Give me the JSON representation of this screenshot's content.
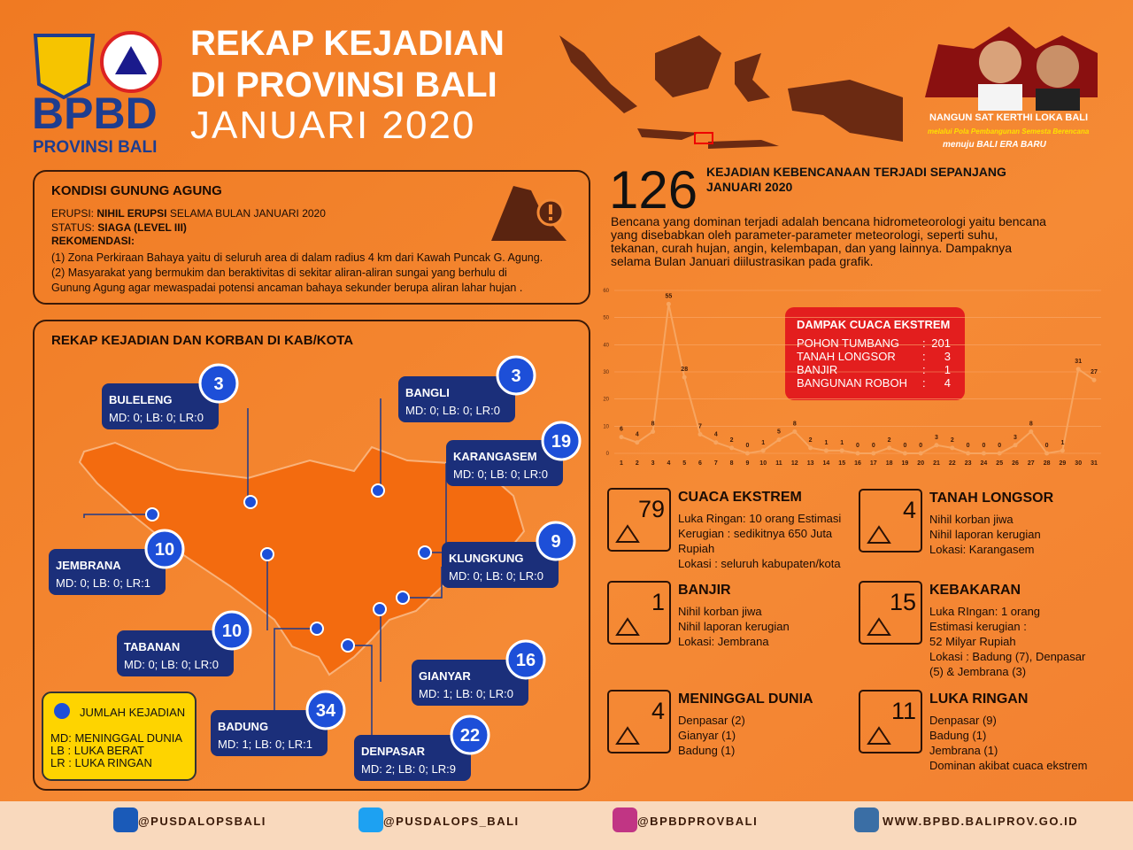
{
  "header": {
    "logo": "BPBD",
    "logo_sub": "PROVINSI BALI",
    "title": [
      "REKAP KEJADIAN",
      "DI PROVINSI BALI",
      "JANUARI 2020"
    ],
    "slogan": [
      "NANGUN SAT KERTHI LOKA BALI",
      "melalui Pola Pembangunan Semesta Berencana",
      "menuju BALI ERA BARU"
    ]
  },
  "gunung": {
    "title": "KONDISI GUNUNG AGUNG",
    "erupsi_label": "ERUPSI:",
    "erupsi_value": "NIHIL ERUPSI",
    "erupsi_note": "SELAMA BULAN JANUARI 2020",
    "status_label": "STATUS:",
    "status_value": "SIAGA (LEVEL III)",
    "rekomendasi": "REKOMENDASI:",
    "lines": [
      "(1)  Zona Perkiraan Bahaya yaitu di seluruh area di dalam radius 4 km dari Kawah Puncak G. Agung.",
      "(2) Masyarakat yang bermukim dan beraktivitas di sekitar aliran-aliran sungai yang berhulu di",
      "Gunung Agung agar mewaspadai potensi ancaman bahaya sekunder berupa aliran lahar hujan ."
    ]
  },
  "map": {
    "title": "REKAP KEJADIAN DAN KORBAN DI KAB/KOTA",
    "regions": [
      {
        "name": "BULELENG",
        "count": 3,
        "stats": "MD: 0; LB: 0; LR:0"
      },
      {
        "name": "BANGLI",
        "count": 3,
        "stats": "MD: 0; LB: 0; LR:0"
      },
      {
        "name": "KARANGASEM",
        "count": 19,
        "stats": "MD: 0; LB: 0; LR:0"
      },
      {
        "name": "JEMBRANA",
        "count": 10,
        "stats": "MD: 0; LB: 0; LR:1"
      },
      {
        "name": "KLUNGKUNG",
        "count": 9,
        "stats": "MD: 0; LB: 0; LR:0"
      },
      {
        "name": "TABANAN",
        "count": 10,
        "stats": "MD: 0; LB: 0; LR:0"
      },
      {
        "name": "GIANYAR",
        "count": 16,
        "stats": "MD: 1; LB: 0; LR:0"
      },
      {
        "name": "BADUNG",
        "count": 34,
        "stats": "MD: 1; LB: 0; LR:1"
      },
      {
        "name": "DENPASAR",
        "count": 22,
        "stats": "MD: 2; LB: 0; LR:9"
      }
    ],
    "legend": [
      "JUMLAH KEJADIAN",
      "MD: MENINGGAL DUNIA",
      "LB  : LUKA BERAT",
      "LR   : LUKA RINGAN"
    ]
  },
  "summary": {
    "total": 126,
    "headline": [
      "KEJADIAN KEBENCANAAN TERJADI SEPANJANG",
      "JANUARI 2020"
    ],
    "paragraph": [
      "Bencana yang dominan terjadi adalah bencana hidrometeorologi yaitu bencana",
      "yang disebabkan oleh parameter-parameter meteorologi, seperti suhu,",
      "tekanan, curah hujan, angin, kelembapan, dan yang lainnya. Dampaknya",
      "selama Bulan Januari diilustrasikan pada grafik."
    ]
  },
  "chart_data": {
    "type": "line",
    "x": [
      1,
      2,
      3,
      4,
      5,
      6,
      7,
      8,
      9,
      10,
      11,
      12,
      13,
      14,
      15,
      16,
      17,
      18,
      19,
      20,
      21,
      22,
      23,
      24,
      25,
      26,
      27,
      28,
      29,
      30,
      31
    ],
    "xlim": [
      1,
      31
    ],
    "series": [
      {
        "color": "#f7a560",
        "values": [
          6,
          4,
          8,
          55,
          28,
          7,
          4,
          2,
          0,
          1,
          5,
          8,
          2,
          1,
          1,
          0,
          0,
          2,
          0,
          0,
          3,
          2,
          0,
          0,
          0,
          3,
          8,
          0,
          1,
          31,
          27
        ]
      }
    ],
    "ylim": [
      0,
      60
    ],
    "yticks": [
      0,
      10,
      20,
      30,
      40,
      50,
      60
    ],
    "grid": true
  },
  "dampak": {
    "title": "DAMPAK CUACA EKSTREM",
    "separator": ":",
    "rows": [
      {
        "label": "POHON TUMBANG",
        "value": 201
      },
      {
        "label": "TANAH LONGSOR",
        "value": 3
      },
      {
        "label": "BANJIR",
        "value": 1
      },
      {
        "label": "BANGUNAN ROBOH",
        "value": 4
      }
    ]
  },
  "cards": [
    {
      "number": 79,
      "title": "CUACA EKSTREM",
      "lines": [
        "Luka Ringan: 10 orang Estimasi",
        "Kerugian : sedikitnya 650 Juta",
        "Rupiah",
        "Lokasi : seluruh kabupaten/kota"
      ]
    },
    {
      "number": 4,
      "title": "TANAH LONGSOR",
      "lines": [
        "Nihil korban jiwa",
        "Nihil laporan kerugian",
        "Lokasi: Karangasem"
      ]
    },
    {
      "number": 1,
      "title": "BANJIR",
      "lines": [
        "Nihil korban jiwa",
        "Nihil laporan kerugian",
        "Lokasi: Jembrana"
      ]
    },
    {
      "number": 15,
      "title": "KEBAKARAN",
      "lines": [
        "Luka RIngan: 1 orang",
        "Estimasi kerugian :",
        "52 Milyar Rupiah",
        "Lokasi : Badung (7), Denpasar",
        "(5) & Jembrana (3)"
      ]
    },
    {
      "number": 4,
      "title": "MENINGGAL DUNIA",
      "lines": [
        "Denpasar (2)",
        "Gianyar (1)",
        "Badung (1)"
      ]
    },
    {
      "number": 11,
      "title": "LUKA RINGAN",
      "lines": [
        "Denpasar (9)",
        "Badung (1)",
        "Jembrana (1)",
        "Dominan akibat cuaca ekstrem"
      ]
    }
  ],
  "footer": [
    "@PUSDALOPSBALI",
    "@PUSDALOPS_BALI",
    "@BPBDPROVBALI",
    "WWW.BPBD.BALIPROV.GO.ID"
  ]
}
